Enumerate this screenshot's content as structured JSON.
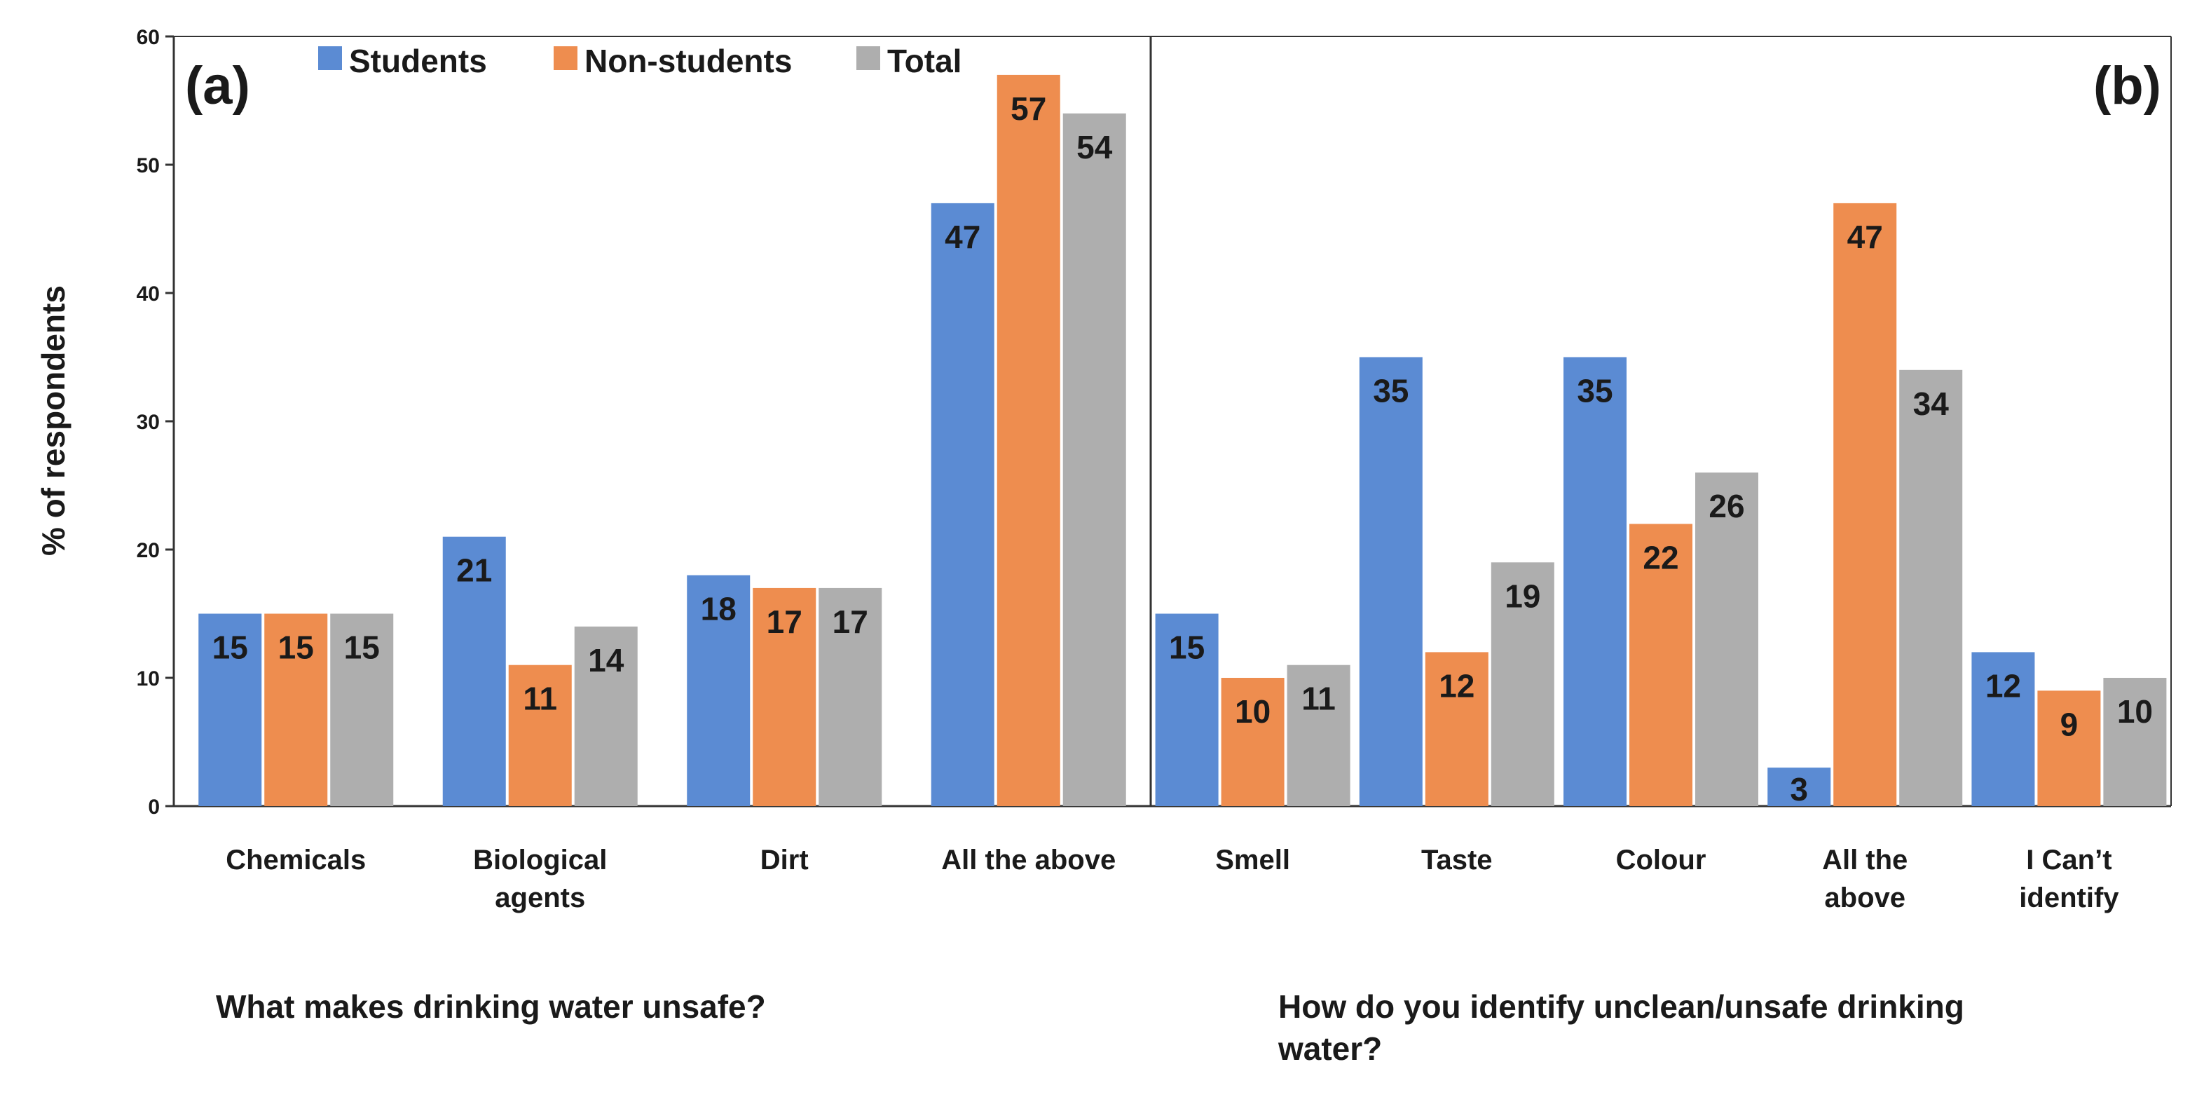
{
  "colors": {
    "Students": "#5b8bd3",
    "Non-students": "#ee8d4f",
    "Total": "#aeaeae",
    "axis": "#333333"
  },
  "chart_data": [
    {
      "type": "bar",
      "panel_label": "(a)",
      "title": "What makes drinking water unsafe?",
      "xlabel": "What makes drinking water unsafe?",
      "ylabel": "% of respondents",
      "ylim": [
        0,
        60
      ],
      "yticks": [
        "0",
        "10",
        "20",
        "30",
        "40",
        "50",
        "60"
      ],
      "categories": [
        [
          "Chemicals"
        ],
        [
          "Biological",
          "agents"
        ],
        [
          "Dirt"
        ],
        [
          "All the above"
        ]
      ],
      "series": [
        {
          "name": "Students",
          "values": [
            15,
            21,
            18,
            47
          ]
        },
        {
          "name": "Non-students",
          "values": [
            15,
            11,
            17,
            57
          ]
        },
        {
          "name": "Total",
          "values": [
            15,
            14,
            17,
            54
          ]
        }
      ],
      "legend": [
        "Students",
        "Non-students",
        "Total"
      ],
      "legend_position": "top-center"
    },
    {
      "type": "bar",
      "panel_label": "(b)",
      "title": "How do you identify unclean/unsafe drinking water?",
      "xlabel_lines": [
        "How do you identify unclean/unsafe drinking",
        "water?"
      ],
      "ylim": [
        0,
        60
      ],
      "categories": [
        [
          "Smell"
        ],
        [
          "Taste"
        ],
        [
          "Colour"
        ],
        [
          "All the",
          "above"
        ],
        [
          "I Can’t",
          "identify"
        ]
      ],
      "series": [
        {
          "name": "Students",
          "values": [
            15,
            35,
            35,
            3,
            12
          ]
        },
        {
          "name": "Non-students",
          "values": [
            10,
            12,
            22,
            47,
            9
          ]
        },
        {
          "name": "Total",
          "values": [
            11,
            19,
            26,
            34,
            10
          ]
        }
      ]
    }
  ]
}
